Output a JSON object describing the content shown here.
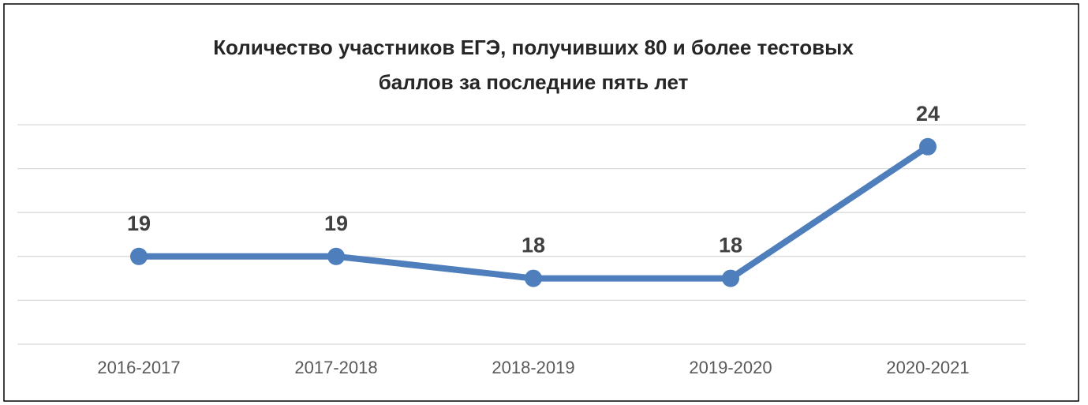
{
  "chart_data": {
    "type": "line",
    "title": [
      "Количество участников ЕГЭ, получивших 80 и более тестовых",
      "баллов за последние пять лет"
    ],
    "categories": [
      "2016-2017",
      "2017-2018",
      "2018-2019",
      "2019-2020",
      "2020-2021"
    ],
    "values": [
      19,
      19,
      18,
      18,
      24
    ],
    "color": "#4f7ebd",
    "ylim": [
      15,
      25
    ],
    "yticks": [
      15,
      17,
      19,
      21,
      23,
      25
    ],
    "grid": true
  }
}
